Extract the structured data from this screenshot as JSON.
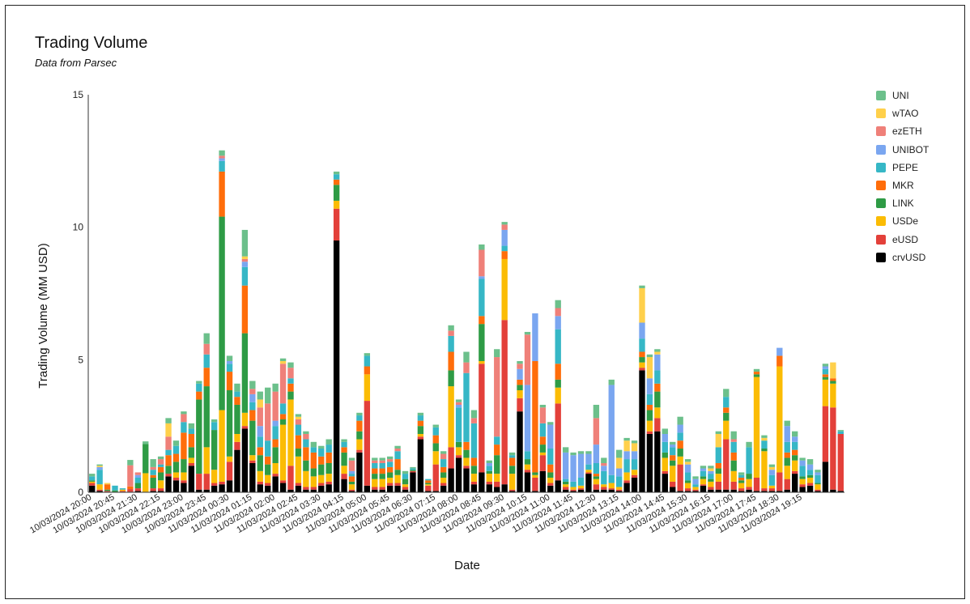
{
  "chart_data": {
    "type": "bar",
    "stacked": true,
    "title": "Trading Volume",
    "subtitle": "Data from Parsec",
    "xlabel": "Date",
    "ylabel": "Trading Volume (MM USD)",
    "ylim": [
      0,
      15
    ],
    "yticks": [
      0,
      5,
      10,
      15
    ],
    "legend_position": "right",
    "grid": false,
    "tick_labels": [
      "10/03/2024 20:00",
      "10/03/2024 20:45",
      "10/03/2024 21:30",
      "10/03/2024 22:15",
      "10/03/2024 23:00",
      "10/03/2024 23:45",
      "11/03/2024 00:30",
      "11/03/2024 01:15",
      "11/03/2024 02:00",
      "11/03/2024 02:45",
      "11/03/2024 03:30",
      "11/03/2024 04:15",
      "11/03/2024 05:00",
      "11/03/2024 05:45",
      "11/03/2024 06:30",
      "11/03/2024 07:15",
      "11/03/2024 08:00",
      "11/03/2024 08:45",
      "11/03/2024 09:30",
      "11/03/2024 10:15",
      "11/03/2024 11:00",
      "11/03/2024 11:45",
      "11/03/2024 12:30",
      "11/03/2024 13:15",
      "11/03/2024 14:00",
      "11/03/2024 14:45",
      "11/03/2024 15:30",
      "11/03/2024 16:15",
      "11/03/2024 17:00",
      "11/03/2024 17:45",
      "11/03/2024 18:30",
      "11/03/2024 19:15"
    ],
    "tick_every": 3,
    "series_order_bottom_to_top": [
      "crvUSD",
      "eUSD",
      "USDe",
      "LINK",
      "MKR",
      "PEPE",
      "UNIBOT",
      "ezETH",
      "wTAO",
      "UNI"
    ],
    "series": [
      {
        "name": "UNI",
        "color": "#6cc08b"
      },
      {
        "name": "wTAO",
        "color": "#ffd04b"
      },
      {
        "name": "ezETH",
        "color": "#ef8079"
      },
      {
        "name": "UNIBOT",
        "color": "#7aa6f0"
      },
      {
        "name": "PEPE",
        "color": "#36b7c6"
      },
      {
        "name": "MKR",
        "color": "#ff6d0a"
      },
      {
        "name": "LINK",
        "color": "#2e9b45"
      },
      {
        "name": "USDe",
        "color": "#fbbc04"
      },
      {
        "name": "eUSD",
        "color": "#e3403a"
      },
      {
        "name": "crvUSD",
        "color": "#000000"
      }
    ],
    "bars": [
      {
        "crvUSD": 0.25,
        "eUSD": 0.1,
        "USDe": 0.05,
        "LINK": 0.05,
        "PEPE": 0.15,
        "UNI": 0.1
      },
      {
        "crvUSD": 0.05,
        "eUSD": 0.05,
        "USDe": 0.2,
        "PEPE": 0.55,
        "UNIBOT": 0.1,
        "wTAO": 0.05,
        "UNI": 0.05
      },
      {
        "crvUSD": 0.02,
        "eUSD": 0.03,
        "MKR": 0.2,
        "LINK": 0.05,
        "wTAO": 0.05
      },
      {
        "crvUSD": 0.02,
        "LINK": 0.05,
        "PEPE": 0.18
      },
      {
        "crvUSD": 0.02,
        "eUSD": 0.03,
        "USDe": 0.05,
        "PEPE": 0.05
      },
      {
        "crvUSD": 0.02,
        "eUSD": 0.1,
        "MKR": 0.1,
        "ezETH": 0.8,
        "UNI": 0.2
      },
      {
        "crvUSD": 0.05,
        "eUSD": 0.1,
        "LINK": 0.2,
        "PEPE": 0.2,
        "UNIBOT": 0.1,
        "ezETH": 0.1
      },
      {
        "crvUSD": 0.02,
        "USDe": 0.7,
        "LINK": 1.1,
        "UNI": 0.1
      },
      {
        "crvUSD": 0.05,
        "eUSD": 0.1,
        "LINK": 0.4,
        "MKR": 0.1,
        "PEPE": 0.2,
        "ezETH": 0.1,
        "UNI": 0.3
      },
      {
        "crvUSD": 0.05,
        "eUSD": 0.1,
        "USDe": 0.3,
        "LINK": 0.3,
        "MKR": 0.2,
        "PEPE": 0.1,
        "ezETH": 0.2,
        "UNI": 0.1
      },
      {
        "crvUSD": 0.6,
        "eUSD": 0.1,
        "LINK": 0.3,
        "MKR": 0.4,
        "PEPE": 0.2,
        "ezETH": 0.5,
        "wTAO": 0.5,
        "UNI": 0.2
      },
      {
        "crvUSD": 0.45,
        "eUSD": 0.1,
        "USDe": 0.2,
        "LINK": 0.4,
        "MKR": 0.3,
        "PEPE": 0.3,
        "UNI": 0.2
      },
      {
        "crvUSD": 0.35,
        "eUSD": 0.1,
        "USDe": 0.3,
        "LINK": 0.5,
        "MKR": 1.0,
        "PEPE": 0.4,
        "ezETH": 0.3,
        "UNI": 0.1
      },
      {
        "crvUSD": 1.0,
        "eUSD": 0.1,
        "USDe": 0.2,
        "LINK": 0.4,
        "MKR": 0.5,
        "PEPE": 0.2,
        "UNI": 0.2
      },
      {
        "crvUSD": 0.1,
        "eUSD": 0.6,
        "LINK": 2.8,
        "MKR": 0.3,
        "PEPE": 0.3,
        "UNI": 0.1
      },
      {
        "crvUSD": 0.1,
        "eUSD": 0.6,
        "USDe": 1.0,
        "LINK": 2.3,
        "MKR": 0.7,
        "PEPE": 0.5,
        "ezETH": 0.4,
        "UNI": 0.4
      },
      {
        "crvUSD": 0.25,
        "eUSD": 0.1,
        "USDe": 0.5,
        "LINK": 1.5,
        "PEPE": 0.3,
        "UNI": 0.1
      },
      {
        "crvUSD": 0.3,
        "eUSD": 0.1,
        "USDe": 2.7,
        "LINK": 7.3,
        "MKR": 1.7,
        "PEPE": 0.4,
        "UNIBOT": 0.1,
        "ezETH": 0.1,
        "UNI": 0.2
      },
      {
        "crvUSD": 0.45,
        "eUSD": 0.7,
        "USDe": 0.2,
        "LINK": 2.5,
        "MKR": 0.7,
        "PEPE": 0.3,
        "UNIBOT": 0.1,
        "UNI": 0.2
      },
      {
        "crvUSD": 1.6,
        "eUSD": 0.3,
        "USDe": 0.3,
        "LINK": 1.1,
        "MKR": 0.3,
        "PEPE": 0.2,
        "UNI": 0.3
      },
      {
        "crvUSD": 2.4,
        "eUSD": 0.1,
        "USDe": 0.5,
        "LINK": 3.0,
        "MKR": 1.8,
        "PEPE": 0.7,
        "UNIBOT": 0.2,
        "ezETH": 0.1,
        "wTAO": 0.1,
        "UNI": 1.0
      },
      {
        "crvUSD": 1.1,
        "eUSD": 0.1,
        "USDe": 0.2,
        "LINK": 1.3,
        "MKR": 0.4,
        "PEPE": 0.3,
        "UNIBOT": 0.3,
        "ezETH": 0.2,
        "UNI": 0.3
      },
      {
        "crvUSD": 0.3,
        "eUSD": 0.1,
        "USDe": 0.4,
        "LINK": 0.6,
        "MKR": 0.3,
        "PEPE": 0.4,
        "UNIBOT": 0.4,
        "ezETH": 0.7,
        "wTAO": 0.3,
        "UNI": 0.3
      },
      {
        "crvUSD": 0.25,
        "eUSD": 0.1,
        "USDe": 0.3,
        "LINK": 0.4,
        "MKR": 0.3,
        "PEPE": 0.6,
        "ezETH": 1.4,
        "UNI": 0.6
      },
      {
        "crvUSD": 0.6,
        "eUSD": 0.1,
        "USDe": 0.4,
        "LINK": 0.6,
        "MKR": 0.3,
        "PEPE": 0.5,
        "UNIBOT": 0.2,
        "ezETH": 1.1,
        "UNI": 0.3
      },
      {
        "crvUSD": 0.35,
        "eUSD": 0.1,
        "USDe": 2.1,
        "LINK": 0.2,
        "MKR": 0.2,
        "PEPE": 0.4,
        "ezETH": 1.5,
        "wTAO": 0.1,
        "UNI": 0.1
      },
      {
        "crvUSD": 0.1,
        "eUSD": 0.9,
        "USDe": 2.5,
        "LINK": 0.3,
        "MKR": 0.3,
        "PEPE": 0.2,
        "ezETH": 0.4,
        "UNI": 0.2
      },
      {
        "crvUSD": 0.25,
        "eUSD": 0.1,
        "USDe": 1.0,
        "LINK": 0.3,
        "MKR": 0.5,
        "PEPE": 0.4,
        "ezETH": 0.2,
        "wTAO": 0.1,
        "UNI": 0.1
      },
      {
        "crvUSD": 0.1,
        "eUSD": 0.1,
        "USDe": 0.6,
        "LINK": 0.4,
        "MKR": 0.5,
        "PEPE": 0.3,
        "ezETH": 0.2,
        "UNI": 0.1
      },
      {
        "crvUSD": 0.1,
        "eUSD": 0.1,
        "USDe": 0.4,
        "LINK": 0.3,
        "MKR": 0.6,
        "PEPE": 0.2,
        "UNI": 0.2
      },
      {
        "crvUSD": 0.25,
        "eUSD": 0.1,
        "USDe": 0.3,
        "LINK": 0.4,
        "MKR": 0.3,
        "PEPE": 0.3,
        "UNI": 0.1
      },
      {
        "crvUSD": 0.3,
        "eUSD": 0.1,
        "USDe": 0.3,
        "LINK": 0.4,
        "MKR": 0.4,
        "PEPE": 0.3,
        "UNI": 0.2
      },
      {
        "crvUSD": 9.5,
        "eUSD": 1.2,
        "USDe": 0.3,
        "LINK": 0.6,
        "MKR": 0.2,
        "PEPE": 0.2,
        "UNI": 0.1
      },
      {
        "crvUSD": 0.5,
        "eUSD": 0.2,
        "USDe": 0.3,
        "LINK": 0.5,
        "MKR": 0.2,
        "PEPE": 0.2,
        "UNI": 0.1
      },
      {
        "crvUSD": 0.05,
        "eUSD": 0.05,
        "USDe": 0.2,
        "LINK": 0.1,
        "MKR": 0.2,
        "PEPE": 0.1,
        "UNIBOT": 0.1,
        "ezETH": 0.4,
        "UNI": 0.1
      },
      {
        "crvUSD": 1.5,
        "eUSD": 0.1,
        "USDe": 0.4,
        "LINK": 0.3,
        "MKR": 0.4,
        "PEPE": 0.2,
        "UNI": 0.1
      },
      {
        "crvUSD": 0.25,
        "eUSD": 3.2,
        "USDe": 1.0,
        "MKR": 0.3,
        "PEPE": 0.4,
        "UNI": 0.1
      },
      {
        "crvUSD": 0.1,
        "eUSD": 0.1,
        "USDe": 0.3,
        "LINK": 0.2,
        "MKR": 0.2,
        "PEPE": 0.2,
        "ezETH": 0.1,
        "UNI": 0.1
      },
      {
        "crvUSD": 0.1,
        "eUSD": 0.1,
        "USDe": 0.3,
        "LINK": 0.2,
        "MKR": 0.2,
        "PEPE": 0.2,
        "ezETH": 0.1,
        "UNI": 0.1
      },
      {
        "crvUSD": 0.25,
        "eUSD": 0.1,
        "USDe": 0.2,
        "LINK": 0.2,
        "MKR": 0.2,
        "PEPE": 0.2,
        "ezETH": 0.1,
        "UNI": 0.1
      },
      {
        "crvUSD": 0.25,
        "eUSD": 0.1,
        "USDe": 0.3,
        "LINK": 0.2,
        "MKR": 0.4,
        "PEPE": 0.3,
        "ezETH": 0.1,
        "UNI": 0.1
      },
      {
        "crvUSD": 0.1,
        "eUSD": 0.1,
        "USDe": 0.1,
        "LINK": 0.2,
        "PEPE": 0.2,
        "UNI": 0.1
      },
      {
        "crvUSD": 0.75,
        "eUSD": 0.05,
        "LINK": 0.05,
        "PEPE": 0.05,
        "UNI": 0.05
      },
      {
        "crvUSD": 2.0,
        "eUSD": 0.1,
        "USDe": 0.1,
        "LINK": 0.3,
        "MKR": 0.2,
        "PEPE": 0.2,
        "UNI": 0.1
      },
      {
        "crvUSD": 0.05,
        "eUSD": 0.2,
        "USDe": 0.05,
        "LINK": 0.05,
        "MKR": 0.1,
        "PEPE": 0.05
      },
      {
        "crvUSD": 0.05,
        "eUSD": 1.0,
        "USDe": 0.5,
        "LINK": 0.3,
        "MKR": 0.3,
        "PEPE": 0.3,
        "UNI": 0.1
      },
      {
        "crvUSD": 0.25,
        "eUSD": 0.1,
        "USDe": 0.2,
        "LINK": 0.2,
        "MKR": 0.2,
        "PEPE": 0.3,
        "ezETH": 0.2,
        "UNI": 0.1
      },
      {
        "crvUSD": 0.9,
        "eUSD": 0.8,
        "USDe": 2.3,
        "LINK": 0.6,
        "MKR": 0.7,
        "PEPE": 0.6,
        "ezETH": 0.2,
        "UNI": 0.2
      },
      {
        "crvUSD": 1.3,
        "eUSD": 0.1,
        "USDe": 0.3,
        "LINK": 0.2,
        "PEPE": 1.3,
        "UNIBOT": 0.1,
        "ezETH": 0.1,
        "UNI": 0.1
      },
      {
        "crvUSD": 0.9,
        "eUSD": 0.1,
        "USDe": 0.3,
        "LINK": 0.3,
        "MKR": 0.3,
        "PEPE": 2.6,
        "ezETH": 0.4,
        "UNI": 0.4
      },
      {
        "crvUSD": 0.3,
        "eUSD": 0.1,
        "USDe": 0.3,
        "LINK": 0.3,
        "MKR": 0.3,
        "PEPE": 1.3,
        "ezETH": 0.2,
        "UNI": 0.3
      },
      {
        "crvUSD": 0.75,
        "eUSD": 4.1,
        "USDe": 0.1,
        "LINK": 1.4,
        "MKR": 0.3,
        "PEPE": 1.4,
        "UNIBOT": 0.1,
        "ezETH": 1.0,
        "UNI": 0.2
      },
      {
        "crvUSD": 0.3,
        "eUSD": 0.1,
        "USDe": 0.3,
        "LINK": 0.1,
        "PEPE": 0.2,
        "UNIBOT": 0.1,
        "UNI": 0.1
      },
      {
        "crvUSD": 0.2,
        "eUSD": 0.2,
        "USDe": 0.3,
        "LINK": 0.7,
        "MKR": 0.4,
        "PEPE": 0.3,
        "ezETH": 3.0,
        "UNI": 0.3
      },
      {
        "crvUSD": 0.3,
        "eUSD": 6.2,
        "USDe": 2.3,
        "MKR": 0.3,
        "PEPE": 0.2,
        "UNIBOT": 0.6,
        "ezETH": 0.2,
        "UNI": 0.1
      },
      {
        "crvUSD": 0.05,
        "eUSD": 0.05,
        "USDe": 0.6,
        "LINK": 0.3,
        "MKR": 0.3,
        "PEPE": 0.1,
        "UNI": 0.1
      },
      {
        "crvUSD": 3.05,
        "eUSD": 0.5,
        "USDe": 0.3,
        "LINK": 0.2,
        "MKR": 0.2,
        "UNIBOT": 0.4,
        "ezETH": 0.2,
        "UNI": 0.1
      },
      {
        "crvUSD": 0.75,
        "eUSD": 0.1,
        "USDe": 0.2,
        "LINK": 0.2,
        "PEPE": 0.3,
        "UNIBOT": 2.5,
        "ezETH": 1.9,
        "UNI": 0.1
      },
      {
        "crvUSD": 0.05,
        "eUSD": 0.5,
        "USDe": 0.1,
        "LINK": 0.1,
        "MKR": 4.2,
        "UNIBOT": 1.8
      },
      {
        "crvUSD": 0.8,
        "eUSD": 0.6,
        "USDe": 0.1,
        "LINK": 0.3,
        "MKR": 0.3,
        "PEPE": 0.5,
        "ezETH": 0.6,
        "UNI": 0.1
      },
      {
        "crvUSD": 0.25,
        "eUSD": 0.1,
        "USDe": 0.2,
        "LINK": 0.2,
        "MKR": 0.3,
        "PEPE": 0.6,
        "UNIBOT": 0.9,
        "UNI": 0.1
      },
      {
        "crvUSD": 0.45,
        "eUSD": 2.9,
        "USDe": 0.6,
        "LINK": 0.3,
        "MKR": 0.6,
        "PEPE": 1.3,
        "UNIBOT": 0.5,
        "ezETH": 0.3,
        "UNI": 0.3
      },
      {
        "crvUSD": 0.1,
        "eUSD": 0.1,
        "USDe": 0.1,
        "LINK": 0.1,
        "PEPE": 0.1,
        "UNIBOT": 1.0,
        "UNI": 0.2
      },
      {
        "crvUSD": 0.05,
        "eUSD": 0.05,
        "USDe": 0.1,
        "PEPE": 0.2,
        "UNIBOT": 1.0,
        "UNI": 0.1
      },
      {
        "crvUSD": 0.1,
        "eUSD": 0.05,
        "USDe": 0.1,
        "PEPE": 0.3,
        "UNIBOT": 0.9,
        "UNI": 0.1
      },
      {
        "crvUSD": 0.7,
        "eUSD": 0.05,
        "USDe": 0.1,
        "PEPE": 0.2,
        "UNIBOT": 0.4,
        "UNI": 0.1
      },
      {
        "crvUSD": 0.1,
        "eUSD": 0.2,
        "USDe": 0.2,
        "LINK": 0.1,
        "MKR": 0.1,
        "PEPE": 0.4,
        "UNIBOT": 0.7,
        "ezETH": 1.0,
        "UNI": 0.5
      },
      {
        "crvUSD": 0.1,
        "eUSD": 0.1,
        "USDe": 0.1,
        "PEPE": 0.5,
        "UNIBOT": 0.2,
        "ezETH": 0.1,
        "UNI": 0.2
      },
      {
        "crvUSD": 0.1,
        "eUSD": 0.05,
        "USDe": 0.2,
        "PEPE": 0.3,
        "UNIBOT": 3.4,
        "UNI": 0.2
      },
      {
        "crvUSD": 0.05,
        "eUSD": 0.05,
        "USDe": 0.1,
        "PEPE": 0.4,
        "UNIBOT": 0.3,
        "wTAO": 0.4,
        "UNI": 0.3
      },
      {
        "crvUSD": 0.35,
        "eUSD": 0.1,
        "USDe": 0.3,
        "PEPE": 0.5,
        "UNIBOT": 0.3,
        "wTAO": 0.4,
        "UNI": 0.1
      },
      {
        "crvUSD": 0.55,
        "eUSD": 0.1,
        "USDe": 0.2,
        "PEPE": 0.4,
        "UNIBOT": 0.3,
        "wTAO": 0.3,
        "UNI": 0.1
      },
      {
        "crvUSD": 4.6,
        "eUSD": 0.1,
        "USDe": 0.2,
        "LINK": 0.2,
        "MKR": 0.2,
        "PEPE": 0.5,
        "UNIBOT": 0.6,
        "wTAO": 1.3,
        "UNI": 0.1
      },
      {
        "crvUSD": 2.2,
        "eUSD": 0.1,
        "USDe": 0.4,
        "LINK": 0.4,
        "MKR": 0.2,
        "PEPE": 0.4,
        "UNIBOT": 0.6,
        "wTAO": 0.8,
        "UNI": 0.1
      },
      {
        "crvUSD": 2.3,
        "eUSD": 0.5,
        "USDe": 0.4,
        "LINK": 0.6,
        "MKR": 0.3,
        "PEPE": 0.5,
        "UNIBOT": 0.6,
        "wTAO": 0.1,
        "UNI": 0.1
      },
      {
        "crvUSD": 0.7,
        "eUSD": 0.1,
        "USDe": 0.5,
        "LINK": 0.2,
        "PEPE": 0.4,
        "UNIBOT": 0.3,
        "UNI": 0.2
      },
      {
        "crvUSD": 0.2,
        "eUSD": 0.2,
        "USDe": 0.6,
        "LINK": 0.2,
        "MKR": 0.2,
        "PEPE": 0.3,
        "UNIBOT": 0.1,
        "UNI": 0.1
      },
      {
        "crvUSD": 0.05,
        "eUSD": 1.0,
        "USDe": 0.3,
        "LINK": 0.3,
        "MKR": 0.3,
        "PEPE": 0.3,
        "UNIBOT": 0.3,
        "UNI": 0.3
      },
      {
        "crvUSD": 0.05,
        "eUSD": 0.1,
        "USDe": 0.2,
        "LINK": 0.1,
        "PEPE": 0.3,
        "UNIBOT": 0.3,
        "wTAO": 0.1,
        "UNI": 0.1
      },
      {
        "crvUSD": 0.05,
        "eUSD": 0.05,
        "USDe": 0.1,
        "PEPE": 0.1,
        "UNIBOT": 0.2,
        "UNI": 0.1
      },
      {
        "crvUSD": 0.25,
        "eUSD": 0.05,
        "USDe": 0.2,
        "LINK": 0.1,
        "PEPE": 0.2,
        "UNIBOT": 0.1,
        "UNI": 0.1
      },
      {
        "crvUSD": 0.1,
        "eUSD": 0.1,
        "USDe": 0.2,
        "LINK": 0.1,
        "PEPE": 0.2,
        "UNIBOT": 0.1,
        "wTAO": 0.1,
        "UNI": 0.1
      },
      {
        "crvUSD": 0.1,
        "eUSD": 0.3,
        "USDe": 0.3,
        "LINK": 0.2,
        "MKR": 0.2,
        "PEPE": 0.6,
        "wTAO": 0.5,
        "UNI": 0.1
      },
      {
        "crvUSD": 0.1,
        "eUSD": 1.9,
        "USDe": 0.7,
        "LINK": 0.3,
        "MKR": 0.2,
        "PEPE": 0.4,
        "UNI": 0.3
      },
      {
        "crvUSD": 0.1,
        "eUSD": 0.3,
        "USDe": 0.4,
        "LINK": 0.4,
        "MKR": 0.3,
        "PEPE": 0.4,
        "ezETH": 0.1,
        "UNI": 0.3
      },
      {
        "crvUSD": 0.05,
        "eUSD": 0.1,
        "USDe": 0.2,
        "LINK": 0.1,
        "MKR": 0.1,
        "PEPE": 0.1,
        "UNI": 0.1
      },
      {
        "crvUSD": 0.1,
        "eUSD": 0.1,
        "USDe": 0.3,
        "LINK": 0.2,
        "PEPE": 1.0,
        "UNI": 0.2
      },
      {
        "crvUSD": 0.05,
        "eUSD": 0.5,
        "USDe": 3.8,
        "LINK": 0.1,
        "MKR": 0.1,
        "UNI": 0.1
      },
      {
        "crvUSD": 0.05,
        "eUSD": 0.1,
        "USDe": 1.4,
        "LINK": 0.1,
        "PEPE": 0.3,
        "wTAO": 0.1,
        "UNI": 0.1
      },
      {
        "crvUSD": 0.05,
        "eUSD": 0.1,
        "USDe": 0.1,
        "PEPE": 0.4,
        "UNIBOT": 0.2,
        "wTAO": 0.1,
        "UNI": 0.1
      },
      {
        "crvUSD": 0.05,
        "eUSD": 0.7,
        "USDe": 4.0,
        "MKR": 0.4,
        "UNIBOT": 0.3
      },
      {
        "crvUSD": 0.1,
        "eUSD": 0.4,
        "USDe": 0.5,
        "LINK": 0.3,
        "MKR": 0.2,
        "PEPE": 0.4,
        "UNIBOT": 0.6,
        "UNI": 0.2
      },
      {
        "crvUSD": 0.7,
        "eUSD": 0.1,
        "USDe": 0.4,
        "LINK": 0.2,
        "MKR": 0.2,
        "PEPE": 0.3,
        "UNIBOT": 0.2,
        "UNI": 0.2
      },
      {
        "crvUSD": 0.2,
        "eUSD": 0.1,
        "USDe": 0.2,
        "LINK": 0.1,
        "PEPE": 0.4,
        "UNIBOT": 0.2,
        "UNI": 0.1
      },
      {
        "crvUSD": 0.25,
        "eUSD": 0.1,
        "USDe": 0.2,
        "LINK": 0.1,
        "PEPE": 0.2,
        "UNIBOT": 0.2,
        "UNI": 0.2
      },
      {
        "crvUSD": 0.05,
        "eUSD": 0.05,
        "USDe": 0.2,
        "LINK": 0.05,
        "PEPE": 0.3,
        "UNIBOT": 0.1,
        "UNI": 0.1
      },
      {
        "crvUSD": 1.15,
        "eUSD": 2.1,
        "USDe": 1.0,
        "LINK": 0.1,
        "MKR": 0.1,
        "PEPE": 0.2,
        "UNIBOT": 0.1,
        "UNI": 0.1
      },
      {
        "crvUSD": 0.1,
        "eUSD": 3.1,
        "USDe": 0.9,
        "LINK": 0.1,
        "MKR": 0.1,
        "wTAO": 0.6
      },
      {
        "crvUSD": 0.05,
        "eUSD": 2.15,
        "PEPE": 0.1,
        "UNI": 0.05
      }
    ]
  }
}
